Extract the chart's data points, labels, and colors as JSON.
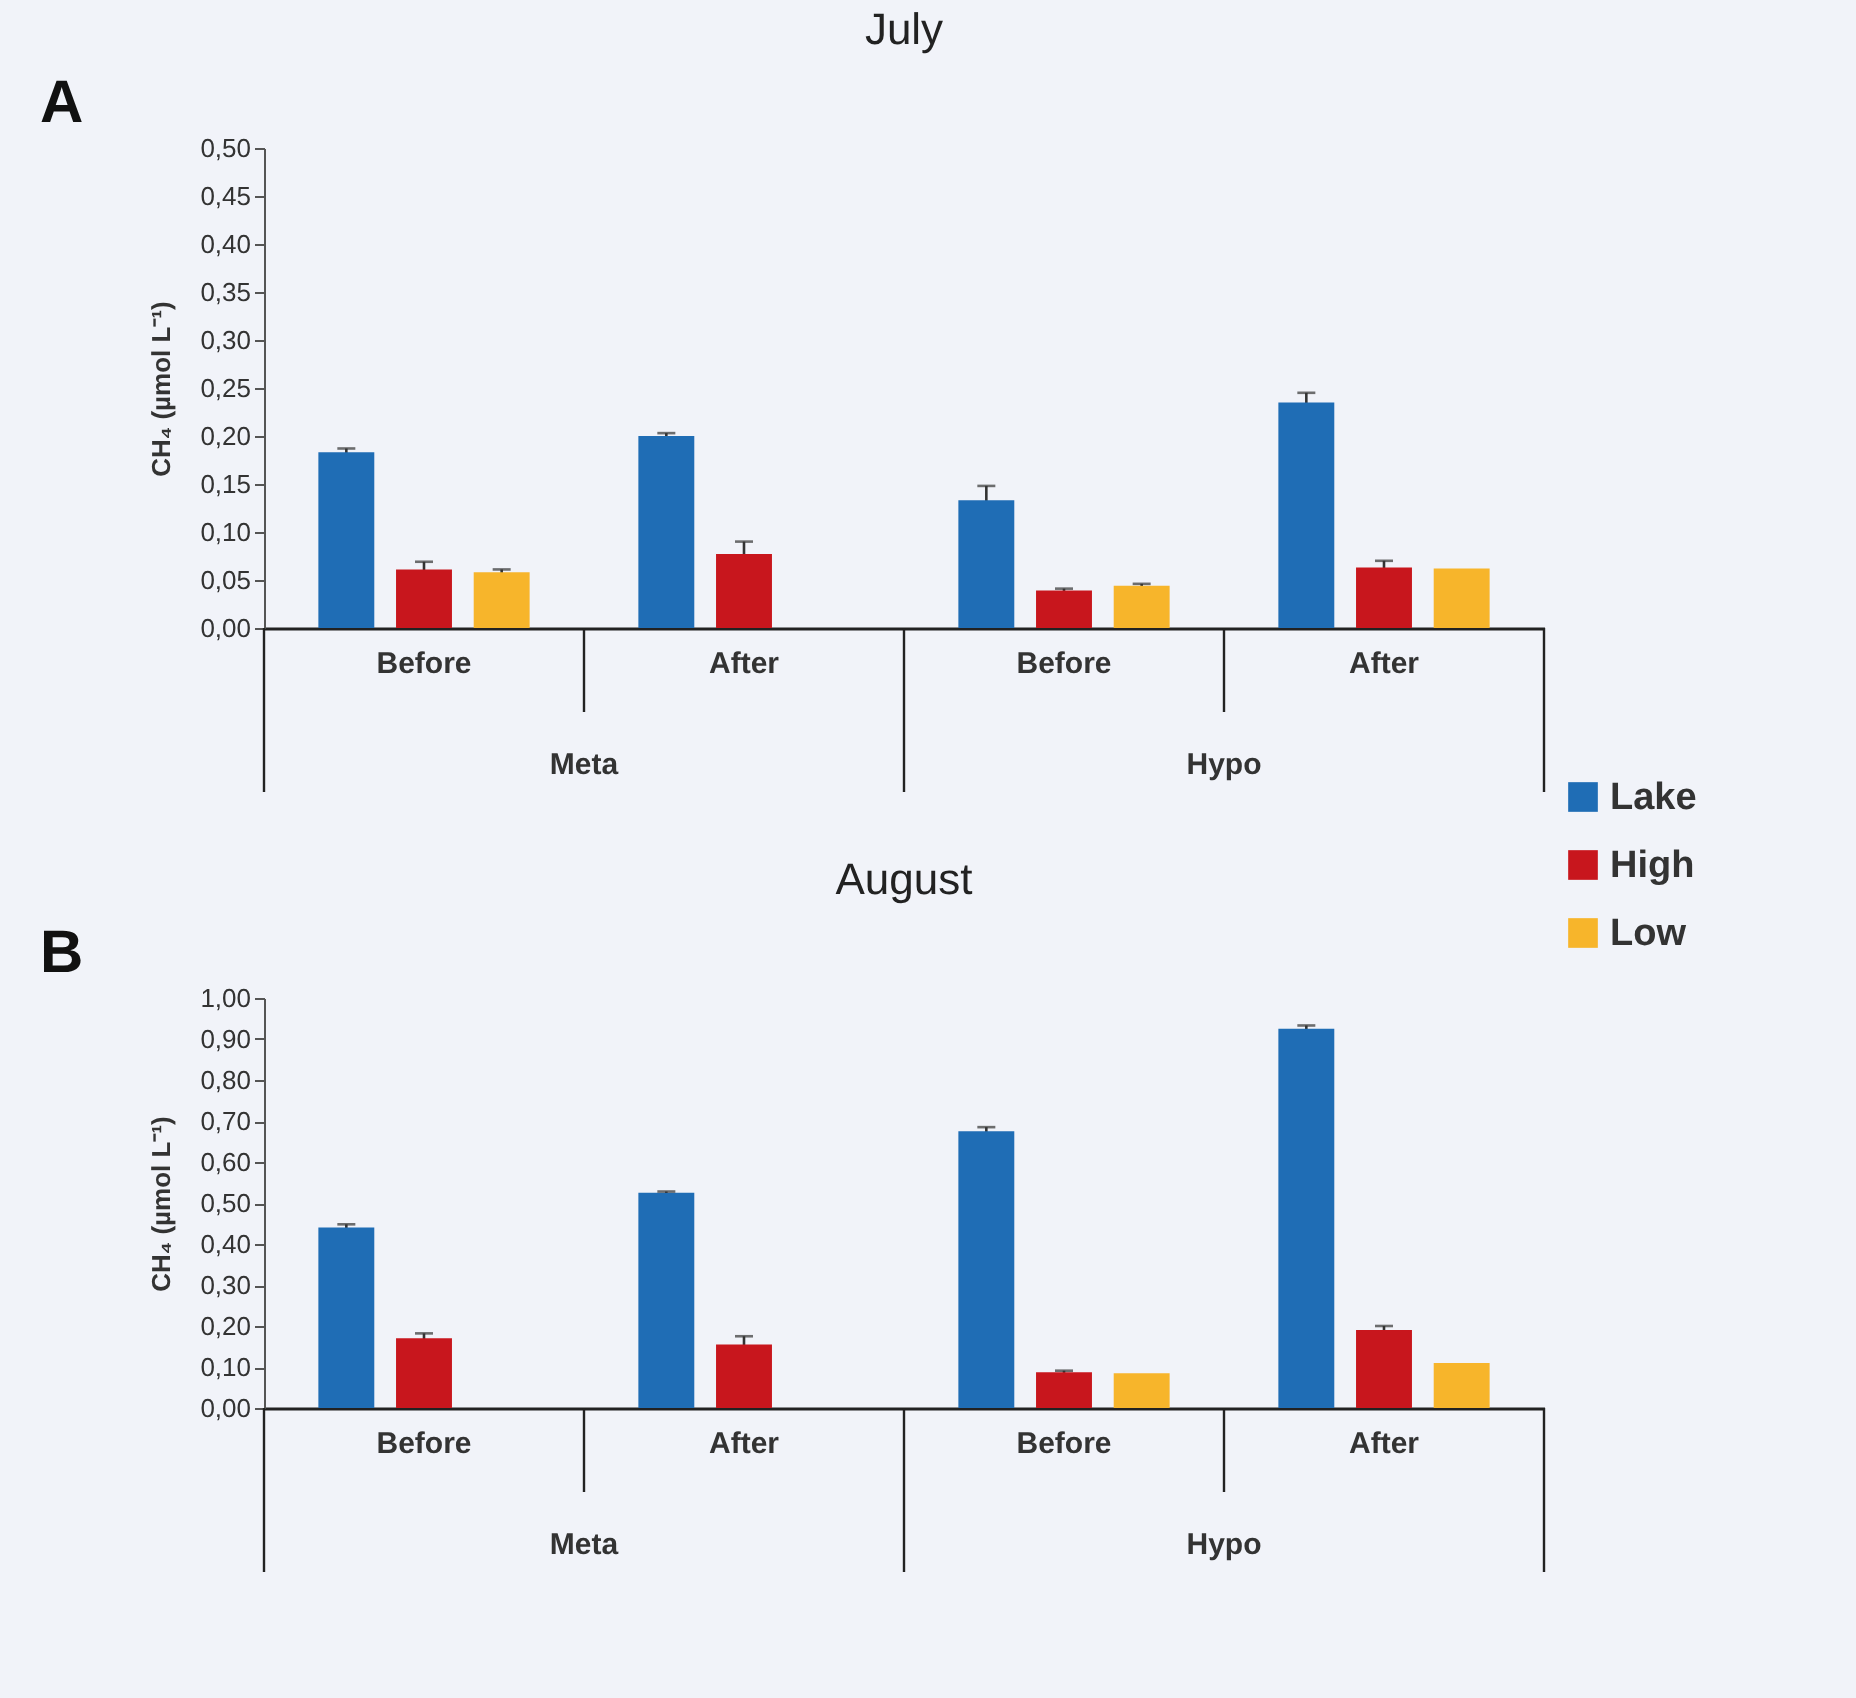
{
  "chart_data": [
    {
      "type": "bar",
      "title": "July",
      "ylabel": "CH₄ (µmol L⁻¹)",
      "annotations": [
        "A",
        "Meta",
        "Hypo"
      ],
      "categories": [
        "Before",
        "After",
        "Before",
        "After"
      ],
      "legend": "right",
      "grid": false,
      "ylim": [
        0,
        0.5
      ],
      "yticks": [
        {
          "value": 0,
          "label": "0,00"
        },
        {
          "value": 0.05,
          "label": "0,05"
        },
        {
          "value": 0.1,
          "label": "0,10"
        },
        {
          "value": 0.15,
          "label": "0,15"
        },
        {
          "value": 0.2,
          "label": "0,20"
        },
        {
          "value": 0.25,
          "label": "0,25"
        },
        {
          "value": 0.3,
          "label": "0,30"
        },
        {
          "value": 0.35,
          "label": "0,35"
        },
        {
          "value": 0.4,
          "label": "0,40"
        },
        {
          "value": 0.45,
          "label": "0,45"
        },
        {
          "value": 0.5,
          "label": "0,50"
        }
      ],
      "series": [
        {
          "name": "Lake",
          "color": "#1f6db5",
          "values": [
            0.183,
            0.2,
            0.133,
            0.235
          ],
          "errors": [
            0.004,
            0.003,
            0.015,
            0.01
          ]
        },
        {
          "name": "High",
          "color": "#c8161d",
          "values": [
            0.061,
            0.077,
            0.039,
            0.063
          ],
          "errors": [
            0.008,
            0.013,
            0.002,
            0.007
          ]
        },
        {
          "name": "Low",
          "color": "#f7b52b",
          "values": [
            0.058,
            null,
            0.044,
            0.062
          ],
          "errors": [
            0.003,
            null,
            0.002,
            null
          ]
        }
      ]
    },
    {
      "type": "bar",
      "title": "August",
      "ylabel": "CH₄ (µmol L⁻¹)",
      "annotations": [
        "B",
        "Meta",
        "Hypo"
      ],
      "categories": [
        "Before",
        "After",
        "Before",
        "After"
      ],
      "grid": false,
      "ylim": [
        0,
        1
      ],
      "yticks": [
        {
          "value": 0,
          "label": "0,00"
        },
        {
          "value": 0.1,
          "label": "0,10"
        },
        {
          "value": 0.2,
          "label": "0,20"
        },
        {
          "value": 0.3,
          "label": "0,30"
        },
        {
          "value": 0.4,
          "label": "0,40"
        },
        {
          "value": 0.5,
          "label": "0,50"
        },
        {
          "value": 0.6,
          "label": "0,60"
        },
        {
          "value": 0.7,
          "label": "0,70"
        },
        {
          "value": 0.8,
          "label": "0,80"
        },
        {
          "value": 0.9,
          "label": "0,90"
        },
        {
          "value": 1,
          "label": "1,00"
        }
      ],
      "series": [
        {
          "color": "#1f6db5",
          "values": [
            0.44,
            0.525,
            0.675,
            0.925
          ],
          "errors": [
            0.008,
            0.003,
            0.01,
            0.008
          ]
        },
        {
          "color": "#c8161d",
          "values": [
            0.17,
            0.155,
            0.087,
            0.19
          ],
          "errors": [
            0.012,
            0.02,
            0.004,
            0.01
          ]
        },
        {
          "color": "#f7b52b",
          "values": [
            null,
            null,
            0.085,
            0.11
          ],
          "errors": [
            null,
            null,
            null,
            null
          ]
        }
      ]
    }
  ]
}
